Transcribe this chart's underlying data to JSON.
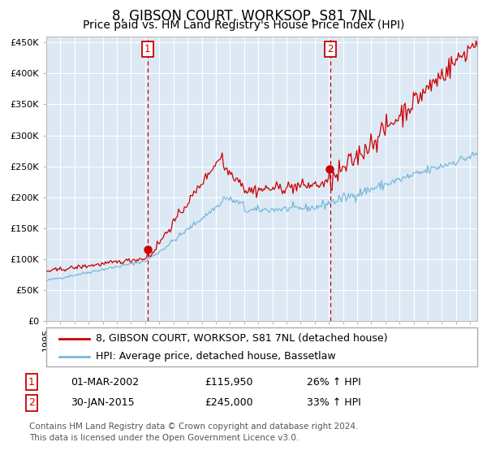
{
  "title": "8, GIBSON COURT, WORKSOP, S81 7NL",
  "subtitle": "Price paid vs. HM Land Registry's House Price Index (HPI)",
  "ylim": [
    0,
    460000
  ],
  "yticks": [
    0,
    50000,
    100000,
    150000,
    200000,
    250000,
    300000,
    350000,
    400000,
    450000
  ],
  "ytick_labels": [
    "£0",
    "£50K",
    "£100K",
    "£150K",
    "£200K",
    "£250K",
    "£300K",
    "£350K",
    "£400K",
    "£450K"
  ],
  "background_color": "#dce9f5",
  "grid_color": "#ffffff",
  "red_line_color": "#cc0000",
  "blue_line_color": "#7ab8d9",
  "marker_color": "#cc0000",
  "vline_color": "#cc0000",
  "purchase1_year": 2002.17,
  "purchase1_price": 115950,
  "purchase2_year": 2015.08,
  "purchase2_price": 245000,
  "legend_red_label": "8, GIBSON COURT, WORKSOP, S81 7NL (detached house)",
  "legend_blue_label": "HPI: Average price, detached house, Bassetlaw",
  "table_row1": [
    "1",
    "01-MAR-2002",
    "£115,950",
    "26% ↑ HPI"
  ],
  "table_row2": [
    "2",
    "30-JAN-2015",
    "£245,000",
    "33% ↑ HPI"
  ],
  "footer": "Contains HM Land Registry data © Crown copyright and database right 2024.\nThis data is licensed under the Open Government Licence v3.0.",
  "title_fontsize": 12,
  "subtitle_fontsize": 10,
  "tick_fontsize": 8,
  "legend_fontsize": 9,
  "table_fontsize": 9,
  "footer_fontsize": 7.5,
  "xstart": 1995,
  "xend": 2025.5
}
